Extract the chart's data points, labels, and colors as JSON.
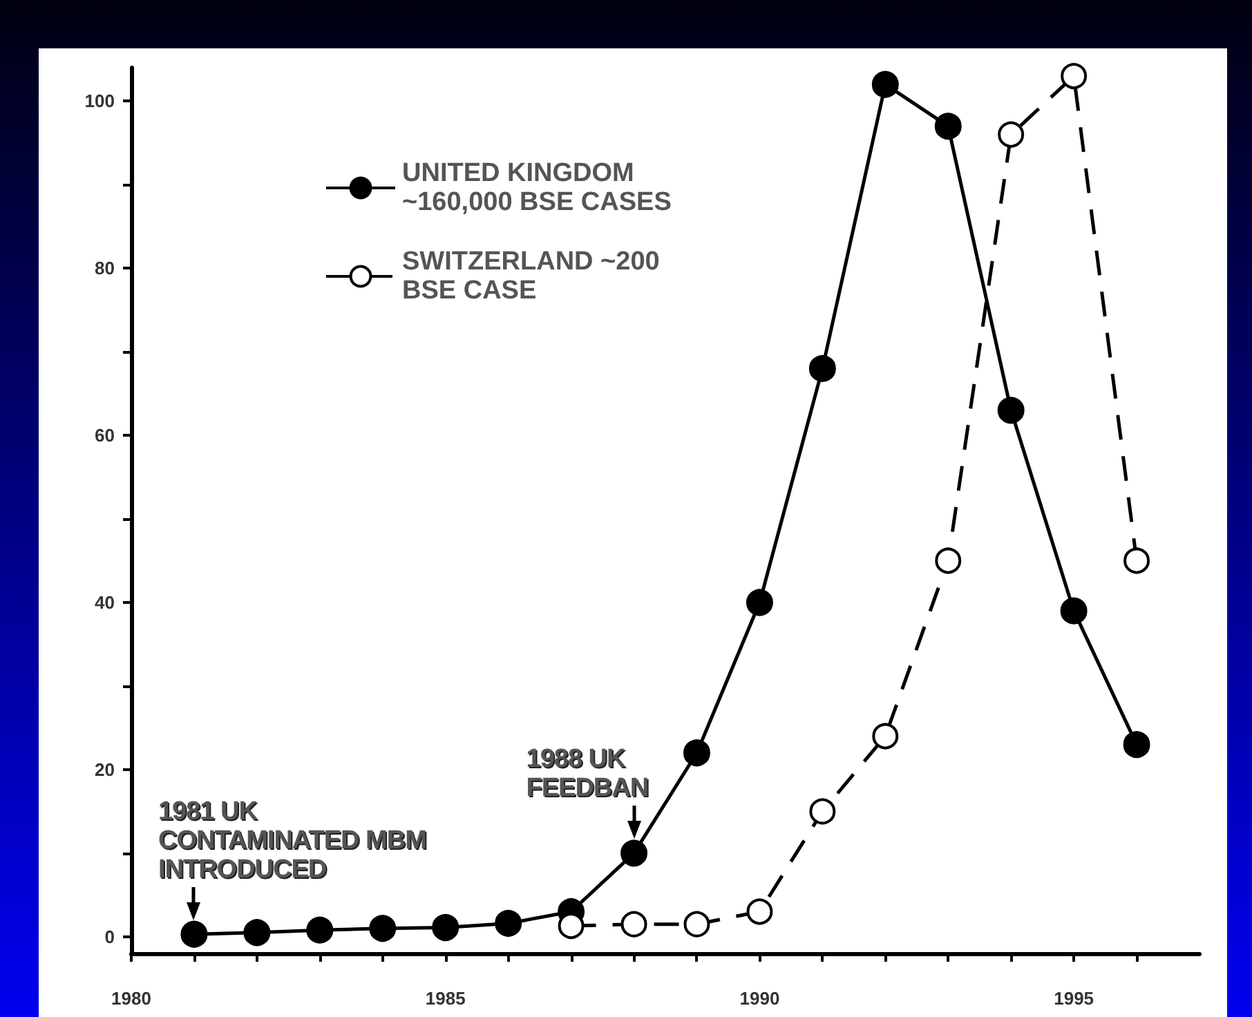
{
  "chart_data": {
    "type": "line",
    "x": [
      1981,
      1982,
      1983,
      1984,
      1985,
      1986,
      1987,
      1988,
      1989,
      1990,
      1991,
      1992,
      1993,
      1994,
      1995,
      1996
    ],
    "series": [
      {
        "name": "UNITED KINGDOM ~160,000 BSE CASES",
        "color": "#000000",
        "line_style": "solid",
        "marker": "circle",
        "values": [
          0.3,
          0.5,
          0.8,
          1,
          1.1,
          1.6,
          3,
          10,
          22,
          40,
          68,
          102,
          97,
          63,
          39,
          23
        ]
      },
      {
        "name": "SWITZERLAND ~200 BSE CASE",
        "color": "#000000",
        "line_style": "dashed",
        "marker": "circle",
        "values": [
          null,
          null,
          null,
          null,
          null,
          null,
          1.3,
          1.5,
          1.5,
          3,
          15,
          24,
          45,
          96,
          103,
          45
        ]
      }
    ],
    "xlim": [
      1980,
      1997
    ],
    "xticks": [
      1980,
      {
        "value": 1981,
        "label": null
      },
      {
        "value": 1982,
        "label": null
      },
      {
        "value": 1983,
        "label": null
      },
      {
        "value": 1984,
        "label": null
      },
      1985,
      {
        "value": 1986,
        "label": null
      },
      {
        "value": 1987,
        "label": null
      },
      {
        "value": 1988,
        "label": null
      },
      {
        "value": 1989,
        "label": null
      },
      1990,
      {
        "value": 1991,
        "label": null
      },
      {
        "value": 1992,
        "label": null
      },
      {
        "value": 1993,
        "label": null
      },
      {
        "value": 1994,
        "label": null
      },
      1995,
      {
        "value": 1996,
        "label": null
      }
    ],
    "ylim": [
      -2,
      104
    ],
    "yticks": [
      0,
      {
        "value": 10,
        "label": null
      },
      20,
      {
        "value": 30,
        "label": null
      },
      40,
      {
        "value": 50,
        "label": null
      },
      60,
      {
        "value": 70,
        "label": null
      },
      80,
      {
        "value": 90,
        "label": null
      },
      100
    ],
    "annotations": [
      {
        "text": "1981 UK CONTAMINATED MBM INTRODUCED",
        "x": 1981,
        "y": 0.3
      },
      {
        "text": "1988 UK FEEDBAN",
        "x": 1988,
        "y": 10
      }
    ],
    "grid": false,
    "legend": "top left"
  }
}
